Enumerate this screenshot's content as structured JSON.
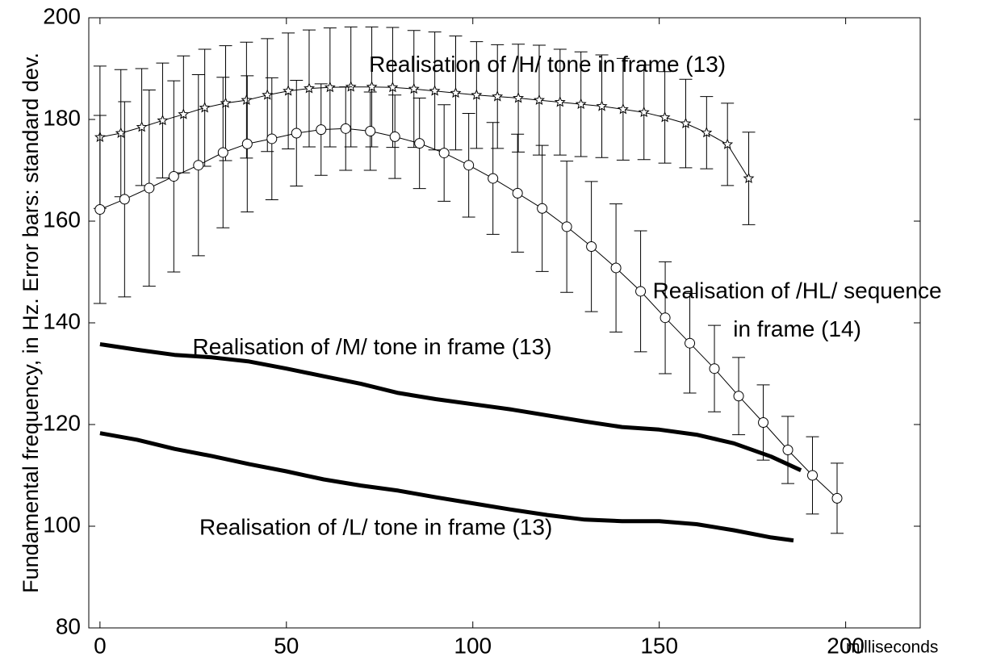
{
  "chart_data": {
    "type": "line",
    "xlabel": "milliseconds",
    "ylabel": "Fundamental frequency, in Hz. Error bars: standard dev.",
    "xlim": [
      -3,
      220
    ],
    "xticks": [
      0,
      50,
      100,
      150,
      200
    ],
    "ylim": [
      80,
      200
    ],
    "yticks": [
      80,
      100,
      120,
      140,
      160,
      180,
      200
    ],
    "annotations": [
      {
        "text": "Realisation of /H/ tone in frame (13)",
        "x": 120,
        "y": 190.5
      },
      {
        "text": "Realisation of /HL/ sequence",
        "x": 187,
        "y": 146
      },
      {
        "text": "in frame (14)",
        "x": 187,
        "y": 138.5
      },
      {
        "text": "Realisation of /M/ tone in frame (13)",
        "x": 73,
        "y": 135
      },
      {
        "text": "Realisation of /L/ tone in frame (13)",
        "x": 74,
        "y": 99.5
      }
    ],
    "series": [
      {
        "color": "#000000",
        "marker": "star",
        "width": 1,
        "x": [
          0,
          5.6,
          11.2,
          16.8,
          22.4,
          28.1,
          33.7,
          39.3,
          44.9,
          50.5,
          56.1,
          61.7,
          67.3,
          72.9,
          78.5,
          84.2,
          89.8,
          95.4,
          101,
          106.6,
          112.2,
          117.8,
          123.4,
          129,
          134.6,
          140.3,
          145.9,
          151.5,
          157.1,
          162.7,
          168.3,
          174
        ],
        "values": [
          176.5,
          177.3,
          178.5,
          179.8,
          181,
          182.3,
          183.2,
          183.8,
          184.8,
          185.6,
          186.1,
          186.3,
          186.4,
          186.4,
          186.3,
          186,
          185.6,
          185.2,
          184.8,
          184.5,
          184.2,
          183.8,
          183.4,
          183,
          182.6,
          182,
          181.4,
          180.4,
          179.2,
          177.4,
          175.1,
          168.4
        ],
        "errors": [
          14,
          12.5,
          11.5,
          11.3,
          11.5,
          11.5,
          11.3,
          11.4,
          11.1,
          11.4,
          11.5,
          11.7,
          11.8,
          11.8,
          11.8,
          11.5,
          11.6,
          11.2,
          10.5,
          10.2,
          10.6,
          10.8,
          10.4,
          10.3,
          10.1,
          10,
          9.3,
          9,
          8.7,
          7.1,
          8.1,
          9.1
        ]
      },
      {
        "color": "#000000",
        "marker": "circle",
        "width": 1,
        "x": [
          0,
          6.6,
          13.2,
          19.8,
          26.4,
          33,
          39.5,
          46.1,
          52.7,
          59.3,
          65.9,
          72.5,
          79.1,
          85.7,
          92.3,
          98.9,
          105.4,
          112,
          118.6,
          125.2,
          131.8,
          138.4,
          145,
          151.6,
          158.2,
          164.8,
          171.3,
          177.9,
          184.5,
          191.1,
          197.7
        ],
        "values": [
          162.3,
          164.3,
          166.5,
          168.8,
          171,
          173.5,
          175.2,
          176.2,
          177.3,
          178,
          178.2,
          177.7,
          176.6,
          175.3,
          173.4,
          171,
          168.4,
          165.5,
          162.5,
          158.9,
          155,
          150.8,
          146.2,
          141,
          136,
          131,
          125.6,
          120.4,
          115,
          110,
          105.5
        ],
        "errors": [
          18.5,
          19.2,
          19.3,
          18.8,
          17.8,
          14.8,
          13.4,
          12,
          10.4,
          9,
          8.2,
          7.7,
          8.2,
          8.9,
          9.5,
          10.2,
          11,
          11.6,
          12.4,
          12.9,
          12.8,
          12.6,
          11.9,
          11,
          9.8,
          8.5,
          7.6,
          7.4,
          6.6,
          7.6,
          6.9
        ]
      },
      {
        "color": "#000000",
        "width": 5,
        "x": [
          0,
          10,
          20,
          30,
          40,
          50,
          60,
          70,
          80,
          90,
          100,
          110,
          120,
          130,
          140,
          150,
          160,
          170,
          180,
          188
        ],
        "values": [
          135.8,
          134.7,
          133.7,
          133.2,
          132.4,
          131,
          129.5,
          128,
          126.2,
          125,
          124,
          123,
          121.8,
          120.6,
          119.5,
          119,
          118,
          116.3,
          113.7,
          111
        ]
      },
      {
        "color": "#000000",
        "width": 5,
        "x": [
          0,
          10,
          20,
          30,
          40,
          50,
          60,
          70,
          80,
          90,
          100,
          110,
          120,
          130,
          140,
          150,
          160,
          170,
          180,
          186
        ],
        "values": [
          118.3,
          117,
          115.2,
          113.8,
          112.2,
          110.8,
          109.2,
          108,
          107,
          105.7,
          104.5,
          103.3,
          102.2,
          101.3,
          101,
          101,
          100.4,
          99.2,
          97.8,
          97.2
        ]
      }
    ]
  }
}
